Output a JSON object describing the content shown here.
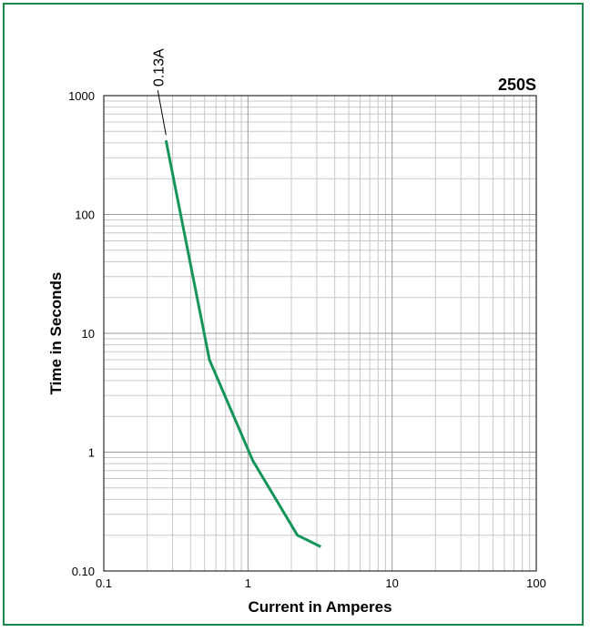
{
  "chart_data": {
    "type": "line",
    "title": "250S",
    "xlabel": "Current in Amperes",
    "ylabel": "Time in Seconds",
    "x_scale": "log",
    "y_scale": "log",
    "xlim": [
      0.1,
      100
    ],
    "ylim": [
      0.1,
      1000
    ],
    "x_ticks": [
      {
        "value": 0.1,
        "label": "0.1"
      },
      {
        "value": 1,
        "label": "1"
      },
      {
        "value": 10,
        "label": "10"
      },
      {
        "value": 100,
        "label": "100"
      }
    ],
    "y_ticks": [
      {
        "value": 0.1,
        "label": "0.10"
      },
      {
        "value": 1,
        "label": "1"
      },
      {
        "value": 10,
        "label": "10"
      },
      {
        "value": 100,
        "label": "100"
      },
      {
        "value": 1000,
        "label": "1000"
      }
    ],
    "grid": true,
    "series": [
      {
        "color": "#16955a",
        "points": [
          {
            "x": 0.27,
            "y": 420
          },
          {
            "x": 0.54,
            "y": 6
          },
          {
            "x": 1.08,
            "y": 0.85
          },
          {
            "x": 2.2,
            "y": 0.2
          },
          {
            "x": 3.2,
            "y": 0.16
          }
        ]
      }
    ],
    "annotations": [
      {
        "text": "0.13A",
        "x": 0.3,
        "y": 1000
      }
    ]
  },
  "colors": {
    "frame": "#1a8a4a",
    "grid": "#c8c8c8",
    "axes": "#000000",
    "curve": "#16955a"
  }
}
